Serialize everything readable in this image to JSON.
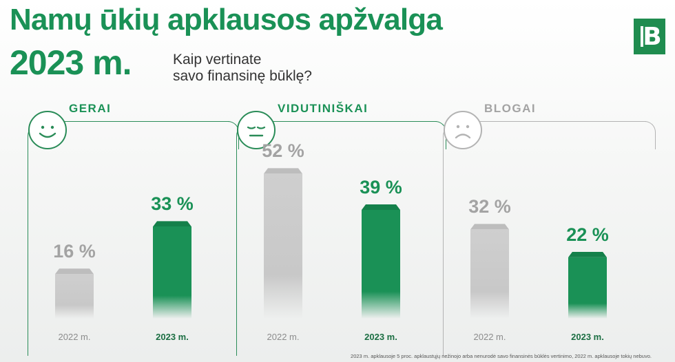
{
  "header": {
    "title": "Namų ūkių apklausos apžvalga",
    "year": "2023 m.",
    "question_line1": "Kaip vertinate",
    "question_line2": "savo finansinę būklę?"
  },
  "logo": {
    "letter": "B"
  },
  "colors": {
    "green": "#1a9156",
    "green_dark": "#13834a",
    "gray_bar": "#c8c8c8",
    "gray_text": "#a3a3a3",
    "panel_green": "#2a8c58",
    "panel_gray": "#b3b3b3"
  },
  "chart_data": {
    "type": "bar",
    "title": "Kaip vertinate savo finansinę būklę?",
    "unit": "%",
    "ylim": [
      0,
      60
    ],
    "series_names": [
      "2022 m.",
      "2023 m."
    ],
    "groups": [
      {
        "name": "GERAI",
        "face": "smile-icon",
        "values": [
          16,
          33
        ],
        "labels": [
          "16 %",
          "33 %"
        ]
      },
      {
        "name": "VIDUTINIŠKAI",
        "face": "neutral-face-icon",
        "values": [
          52,
          39
        ],
        "labels": [
          "52 %",
          "39 %"
        ]
      },
      {
        "name": "BLOGAI",
        "face": "sad-face-icon",
        "values": [
          32,
          22
        ],
        "labels": [
          "32 %",
          "22 %"
        ]
      }
    ]
  },
  "footnote": "2023 m. apklausoje 5 proc. apklaustųjų nežinojo arba nenurodė savo finansinės būklės vertinimo, 2022 m. apklausoje tokių nebuvo."
}
